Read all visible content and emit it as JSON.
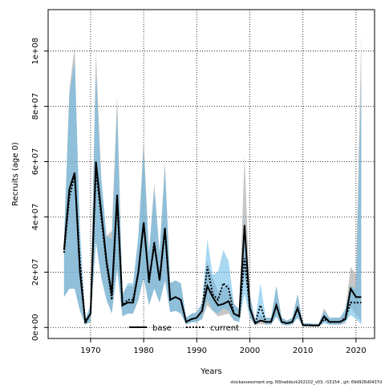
{
  "chart_data": {
    "type": "line",
    "title": "",
    "xlabel": "Years",
    "ylabel": "Recruits (age 0)",
    "xlim": [
      1962,
      2023.5
    ],
    "ylim": [
      -4000000,
      115000000
    ],
    "x_ticks": [
      1970,
      1980,
      1990,
      2000,
      2010,
      2020
    ],
    "x_tick_labels": [
      "1970",
      "1980",
      "1990",
      "2000",
      "2010",
      "2020"
    ],
    "y_ticks": [
      0,
      20000000,
      40000000,
      60000000,
      80000000,
      100000000
    ],
    "y_tick_labels": [
      "0e+00",
      "2e+07",
      "4e+07",
      "6e+07",
      "8e+07",
      "1e+08"
    ],
    "grid": true,
    "legend_position": "bottom-center",
    "legend_entries": [
      "base",
      "current"
    ],
    "x": [
      1965,
      1966,
      1967,
      1968,
      1969,
      1970,
      1971,
      1972,
      1973,
      1974,
      1975,
      1976,
      1977,
      1978,
      1979,
      1980,
      1981,
      1982,
      1983,
      1984,
      1985,
      1986,
      1987,
      1988,
      1989,
      1990,
      1991,
      1992,
      1993,
      1994,
      1995,
      1996,
      1997,
      1998,
      1999,
      2000,
      2001,
      2002,
      2003,
      2004,
      2005,
      2006,
      2007,
      2008,
      2009,
      2010,
      2011,
      2012,
      2013,
      2014,
      2015,
      2016,
      2017,
      2018,
      2019,
      2020,
      2021
    ],
    "series": [
      {
        "name": "base",
        "color": "#000000",
        "band_color": "#999999",
        "values": [
          28000000,
          50000000,
          56000000,
          20000000,
          2000000,
          5000000,
          60000000,
          42000000,
          24000000,
          12000000,
          48000000,
          8000000,
          9000000,
          9000000,
          20000000,
          38000000,
          17000000,
          30000000,
          17000000,
          36000000,
          10000000,
          11000000,
          10000000,
          2000000,
          3000000,
          3500000,
          6000000,
          15000000,
          11000000,
          8000000,
          8500000,
          9500000,
          5000000,
          4000000,
          37000000,
          7000000,
          1500000,
          2500000,
          2000000,
          2000000,
          8000000,
          2000000,
          1500000,
          2000000,
          7000000,
          800000,
          800000,
          700000,
          700000,
          4000000,
          2000000,
          2000000,
          2000000,
          3000000,
          14000000,
          11000000,
          11000000
        ],
        "lower": [
          11000000,
          14000000,
          14000000,
          6000000,
          1000000,
          2000000,
          31000000,
          18000000,
          10000000,
          5000000,
          21000000,
          4000000,
          5000000,
          5000000,
          10000000,
          18000000,
          8000000,
          14000000,
          9000000,
          17000000,
          5500000,
          6000000,
          5000000,
          1000000,
          1800000,
          2000000,
          3000000,
          8000000,
          6000000,
          4000000,
          4500000,
          5000000,
          2500000,
          2000000,
          19000000,
          3500000,
          700000,
          1200000,
          1000000,
          1000000,
          4000000,
          1000000,
          700000,
          1000000,
          3500000,
          400000,
          400000,
          300000,
          300000,
          2000000,
          1000000,
          1000000,
          1000000,
          1500000,
          7000000,
          5000000,
          2000000
        ],
        "upper": [
          32000000,
          86000000,
          102000000,
          27000000,
          3000000,
          8000000,
          100000000,
          54000000,
          33000000,
          35000000,
          84000000,
          12000000,
          15000000,
          15000000,
          33000000,
          68000000,
          27000000,
          52000000,
          27000000,
          60000000,
          16000000,
          17000000,
          16000000,
          3500000,
          5000000,
          5500000,
          9000000,
          24000000,
          18000000,
          13000000,
          14000000,
          16000000,
          8500000,
          6500000,
          62000000,
          12000000,
          2500000,
          4500000,
          3500000,
          3500000,
          15000000,
          3500000,
          2500000,
          3500000,
          12000000,
          1500000,
          1500000,
          1300000,
          1300000,
          7000000,
          3500000,
          3500000,
          3500000,
          6000000,
          22000000,
          19000000,
          106000000
        ]
      },
      {
        "name": "current",
        "color": "#000000",
        "band_color": "#60b8e8",
        "values": [
          27000000,
          47000000,
          55000000,
          24000000,
          1500000,
          5000000,
          57000000,
          40000000,
          23000000,
          10000000,
          46000000,
          8000000,
          10000000,
          10000000,
          20000000,
          38000000,
          16000000,
          31000000,
          17000000,
          35000000,
          10000000,
          11000000,
          10000000,
          2000000,
          3000000,
          3500000,
          6000000,
          22000000,
          12000000,
          10000000,
          16000000,
          14000000,
          5000000,
          4000000,
          25000000,
          7000000,
          1500000,
          8000000,
          2000000,
          2000000,
          8000000,
          2000000,
          1500000,
          2000000,
          7000000,
          800000,
          800000,
          700000,
          700000,
          3000000,
          2000000,
          2000000,
          2000000,
          3500000,
          9000000,
          9000000,
          9000000
        ],
        "lower": [
          11000000,
          14000000,
          14000000,
          6000000,
          1000000,
          2000000,
          31000000,
          18000000,
          10000000,
          5000000,
          21000000,
          4000000,
          5000000,
          5000000,
          10000000,
          18000000,
          8000000,
          14000000,
          9000000,
          17000000,
          5500000,
          6000000,
          5000000,
          1000000,
          1800000,
          2000000,
          3000000,
          10000000,
          6000000,
          5000000,
          7000000,
          6000000,
          2500000,
          2000000,
          12000000,
          3500000,
          700000,
          3500000,
          1000000,
          1000000,
          4000000,
          1000000,
          700000,
          1000000,
          3500000,
          400000,
          400000,
          300000,
          300000,
          1500000,
          1000000,
          1000000,
          1000000,
          2000000,
          4500000,
          3000000,
          1000000
        ],
        "upper": [
          32000000,
          84000000,
          97000000,
          37000000,
          2800000,
          8000000,
          92000000,
          54000000,
          33000000,
          32000000,
          78000000,
          12000000,
          16000000,
          16000000,
          33000000,
          64000000,
          27000000,
          50000000,
          27000000,
          58000000,
          16000000,
          17000000,
          16000000,
          3500000,
          5000000,
          5500000,
          9000000,
          32000000,
          19000000,
          20000000,
          28000000,
          24000000,
          8500000,
          6500000,
          40000000,
          12000000,
          2500000,
          16000000,
          3500000,
          3500000,
          15000000,
          3500000,
          2500000,
          3500000,
          12000000,
          1500000,
          1500000,
          1300000,
          1300000,
          6000000,
          3500000,
          3500000,
          3500000,
          7000000,
          15000000,
          14000000,
          90000000
        ]
      }
    ]
  },
  "footer": "stockassessment.org, NShaddock202102_v03, r15154 , git: 69d926d0437d"
}
